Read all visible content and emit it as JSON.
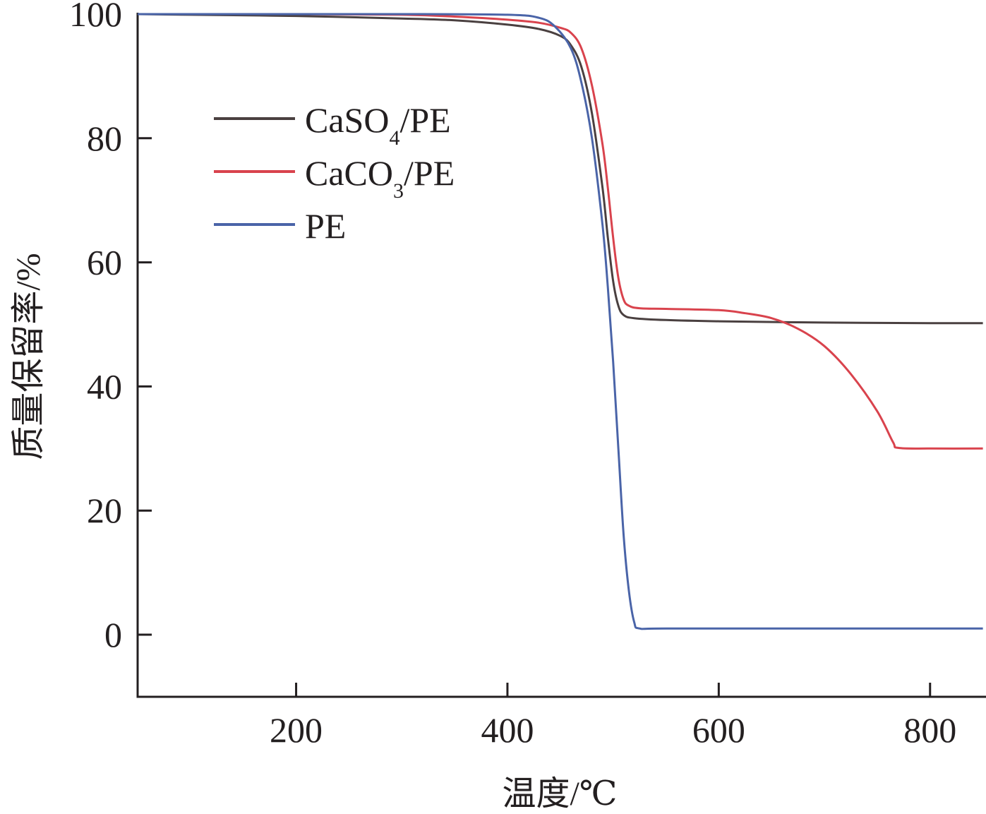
{
  "chart_data": {
    "type": "line",
    "title": "",
    "xlabel": "温度/℃",
    "ylabel": "质量保留率/%",
    "xlim": [
      50,
      850
    ],
    "ylim": [
      -10,
      100
    ],
    "xticks": [
      200,
      400,
      600,
      800
    ],
    "yticks": [
      0,
      20,
      40,
      60,
      80,
      100
    ],
    "xtick_labels": [
      "200",
      "400",
      "600",
      "800"
    ],
    "ytick_labels": [
      "0",
      "20",
      "40",
      "60",
      "80",
      "100"
    ],
    "grid": false,
    "legend_position": "upper-left",
    "series": [
      {
        "name": "CaSO4/PE",
        "legend_main": "CaSO",
        "legend_sub": "4",
        "legend_tail": "/PE",
        "color": "#4a4040",
        "points": [
          [
            50,
            100
          ],
          [
            100,
            99.9
          ],
          [
            200,
            99.7
          ],
          [
            300,
            99.3
          ],
          [
            350,
            99.0
          ],
          [
            400,
            98.3
          ],
          [
            430,
            97.6
          ],
          [
            450,
            96.5
          ],
          [
            460,
            95.0
          ],
          [
            470,
            91.5
          ],
          [
            480,
            84.0
          ],
          [
            490,
            72.0
          ],
          [
            495,
            64.0
          ],
          [
            500,
            57.0
          ],
          [
            505,
            53.0
          ],
          [
            510,
            51.5
          ],
          [
            520,
            51.0
          ],
          [
            550,
            50.7
          ],
          [
            600,
            50.5
          ],
          [
            700,
            50.3
          ],
          [
            800,
            50.2
          ],
          [
            850,
            50.2
          ]
        ]
      },
      {
        "name": "CaCO3/PE",
        "legend_main": "CaCO",
        "legend_sub": "3",
        "legend_tail": "/PE",
        "color": "#d9434d",
        "points": [
          [
            50,
            100
          ],
          [
            200,
            100
          ],
          [
            300,
            99.9
          ],
          [
            350,
            99.6
          ],
          [
            400,
            99.1
          ],
          [
            430,
            98.6
          ],
          [
            450,
            97.8
          ],
          [
            460,
            97.0
          ],
          [
            470,
            94.5
          ],
          [
            480,
            88.5
          ],
          [
            490,
            79.0
          ],
          [
            495,
            72.0
          ],
          [
            500,
            64.0
          ],
          [
            505,
            57.5
          ],
          [
            510,
            54.0
          ],
          [
            515,
            53.0
          ],
          [
            525,
            52.6
          ],
          [
            550,
            52.5
          ],
          [
            600,
            52.3
          ],
          [
            625,
            51.8
          ],
          [
            650,
            51.0
          ],
          [
            675,
            49.3
          ],
          [
            700,
            46.5
          ],
          [
            725,
            42.0
          ],
          [
            750,
            36.0
          ],
          [
            765,
            31.0
          ],
          [
            770,
            30.1
          ],
          [
            800,
            30.0
          ],
          [
            850,
            30.0
          ]
        ]
      },
      {
        "name": "PE",
        "legend_main": "PE",
        "legend_sub": "",
        "legend_tail": "",
        "color": "#4a64a8",
        "points": [
          [
            50,
            100
          ],
          [
            200,
            100
          ],
          [
            300,
            100
          ],
          [
            400,
            99.9
          ],
          [
            430,
            99.4
          ],
          [
            445,
            98.0
          ],
          [
            460,
            94.5
          ],
          [
            470,
            89.0
          ],
          [
            480,
            80.0
          ],
          [
            490,
            66.0
          ],
          [
            495,
            56.0
          ],
          [
            500,
            44.0
          ],
          [
            505,
            30.0
          ],
          [
            510,
            16.0
          ],
          [
            515,
            7.0
          ],
          [
            520,
            2.0
          ],
          [
            525,
            1.0
          ],
          [
            550,
            1.0
          ],
          [
            700,
            1.0
          ],
          [
            850,
            1.0
          ]
        ]
      }
    ]
  }
}
